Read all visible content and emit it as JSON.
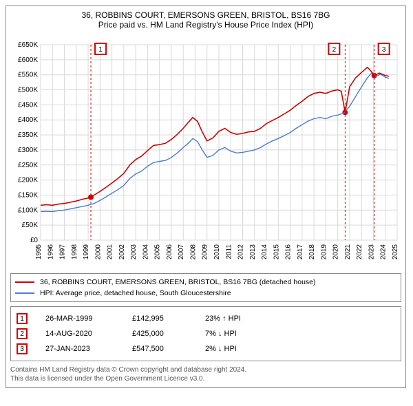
{
  "chart": {
    "type": "line",
    "title_line1": "36, ROBBINS COURT, EMERSONS GREEN, BRISTOL, BS16 7BG",
    "title_line2": "Price paid vs. HM Land Registry's House Price Index (HPI)",
    "title_fontsize": 12,
    "background_color": "#ffffff",
    "border_color": "#888888",
    "grid_color": "#d9d9d9",
    "axis_color": "#000000",
    "tick_fontsize": 10,
    "y": {
      "label_prefix": "£",
      "label_suffix": "K",
      "min": 0,
      "max": 650,
      "tick_step": 50,
      "ticks": [
        "£0",
        "£50K",
        "£100K",
        "£150K",
        "£200K",
        "£250K",
        "£300K",
        "£350K",
        "£400K",
        "£450K",
        "£500K",
        "£550K",
        "£600K",
        "£650K"
      ]
    },
    "x": {
      "min": 1995,
      "max": 2025,
      "tick_step": 1,
      "ticks": [
        "1995",
        "1996",
        "1997",
        "1998",
        "1999",
        "2000",
        "2001",
        "2002",
        "2003",
        "2004",
        "2005",
        "2006",
        "2007",
        "2008",
        "2009",
        "2010",
        "2011",
        "2012",
        "2013",
        "2014",
        "2015",
        "2016",
        "2017",
        "2018",
        "2019",
        "2020",
        "2021",
        "2022",
        "2023",
        "2024",
        "2025"
      ]
    },
    "series": [
      {
        "name": "36, ROBBINS COURT, EMERSONS GREEN, BRISTOL, BS16 7BG (detached house)",
        "color": "#d40000",
        "line_width": 1.6,
        "points": [
          [
            1995.0,
            116
          ],
          [
            1995.5,
            118
          ],
          [
            1996.0,
            116
          ],
          [
            1996.5,
            120
          ],
          [
            1997.0,
            122
          ],
          [
            1997.5,
            126
          ],
          [
            1998.0,
            130
          ],
          [
            1998.5,
            136
          ],
          [
            1999.0,
            140
          ],
          [
            1999.23,
            142.995
          ],
          [
            1999.5,
            150
          ],
          [
            2000.0,
            162
          ],
          [
            2000.5,
            176
          ],
          [
            2001.0,
            190
          ],
          [
            2001.5,
            205
          ],
          [
            2002.0,
            222
          ],
          [
            2002.5,
            250
          ],
          [
            2003.0,
            268
          ],
          [
            2003.5,
            280
          ],
          [
            2004.0,
            298
          ],
          [
            2004.5,
            315
          ],
          [
            2005.0,
            318
          ],
          [
            2005.5,
            322
          ],
          [
            2006.0,
            335
          ],
          [
            2006.5,
            352
          ],
          [
            2007.0,
            372
          ],
          [
            2007.5,
            395
          ],
          [
            2007.8,
            408
          ],
          [
            2008.2,
            395
          ],
          [
            2008.6,
            360
          ],
          [
            2009.0,
            330
          ],
          [
            2009.5,
            340
          ],
          [
            2010.0,
            362
          ],
          [
            2010.5,
            372
          ],
          [
            2011.0,
            358
          ],
          [
            2011.5,
            352
          ],
          [
            2012.0,
            355
          ],
          [
            2012.5,
            360
          ],
          [
            2013.0,
            362
          ],
          [
            2013.5,
            372
          ],
          [
            2014.0,
            388
          ],
          [
            2014.5,
            398
          ],
          [
            2015.0,
            408
          ],
          [
            2015.5,
            420
          ],
          [
            2016.0,
            432
          ],
          [
            2016.5,
            448
          ],
          [
            2017.0,
            462
          ],
          [
            2017.5,
            478
          ],
          [
            2018.0,
            488
          ],
          [
            2018.5,
            492
          ],
          [
            2019.0,
            488
          ],
          [
            2019.5,
            496
          ],
          [
            2020.0,
            500
          ],
          [
            2020.3,
            495
          ],
          [
            2020.62,
            425
          ],
          [
            2021.0,
            510
          ],
          [
            2021.5,
            540
          ],
          [
            2022.0,
            558
          ],
          [
            2022.5,
            575
          ],
          [
            2022.8,
            562
          ],
          [
            2023.07,
            547.5
          ],
          [
            2023.5,
            556
          ],
          [
            2024.0,
            548
          ],
          [
            2024.3,
            545
          ]
        ]
      },
      {
        "name": "HPI: Average price, detached house, South Gloucestershire",
        "color": "#4a7bd6",
        "line_width": 1.4,
        "points": [
          [
            1995.0,
            95
          ],
          [
            1995.5,
            96
          ],
          [
            1996.0,
            95
          ],
          [
            1996.5,
            98
          ],
          [
            1997.0,
            100
          ],
          [
            1997.5,
            104
          ],
          [
            1998.0,
            108
          ],
          [
            1998.5,
            112
          ],
          [
            1999.0,
            116
          ],
          [
            1999.5,
            122
          ],
          [
            2000.0,
            132
          ],
          [
            2000.5,
            144
          ],
          [
            2001.0,
            156
          ],
          [
            2001.5,
            168
          ],
          [
            2002.0,
            182
          ],
          [
            2002.5,
            205
          ],
          [
            2003.0,
            220
          ],
          [
            2003.5,
            230
          ],
          [
            2004.0,
            246
          ],
          [
            2004.5,
            258
          ],
          [
            2005.0,
            262
          ],
          [
            2005.5,
            265
          ],
          [
            2006.0,
            275
          ],
          [
            2006.5,
            290
          ],
          [
            2007.0,
            308
          ],
          [
            2007.5,
            325
          ],
          [
            2007.8,
            338
          ],
          [
            2008.2,
            328
          ],
          [
            2008.6,
            300
          ],
          [
            2009.0,
            275
          ],
          [
            2009.5,
            282
          ],
          [
            2010.0,
            300
          ],
          [
            2010.5,
            308
          ],
          [
            2011.0,
            296
          ],
          [
            2011.5,
            290
          ],
          [
            2012.0,
            292
          ],
          [
            2012.5,
            296
          ],
          [
            2013.0,
            300
          ],
          [
            2013.5,
            308
          ],
          [
            2014.0,
            320
          ],
          [
            2014.5,
            330
          ],
          [
            2015.0,
            338
          ],
          [
            2015.5,
            348
          ],
          [
            2016.0,
            358
          ],
          [
            2016.5,
            372
          ],
          [
            2017.0,
            384
          ],
          [
            2017.5,
            396
          ],
          [
            2018.0,
            404
          ],
          [
            2018.5,
            408
          ],
          [
            2019.0,
            404
          ],
          [
            2019.5,
            412
          ],
          [
            2020.0,
            416
          ],
          [
            2020.5,
            422
          ],
          [
            2021.0,
            445
          ],
          [
            2021.5,
            478
          ],
          [
            2022.0,
            510
          ],
          [
            2022.5,
            540
          ],
          [
            2022.9,
            558
          ],
          [
            2023.2,
            545
          ],
          [
            2023.6,
            552
          ],
          [
            2024.0,
            542
          ],
          [
            2024.3,
            538
          ]
        ]
      }
    ],
    "event_markers": [
      {
        "n": "1",
        "x": 1999.23,
        "y": 142.995,
        "date": "26-MAR-1999",
        "price": "£142,995",
        "hpi": "23% ↑ HPI",
        "line_color": "#d40000",
        "box_border": "#d40000"
      },
      {
        "n": "2",
        "x": 2020.62,
        "y": 425,
        "date": "14-AUG-2020",
        "price": "£425,000",
        "hpi": "7% ↓ HPI",
        "line_color": "#d40000",
        "box_border": "#d40000"
      },
      {
        "n": "3",
        "x": 2023.07,
        "y": 547.5,
        "date": "27-JAN-2023",
        "price": "£547,500",
        "hpi": "2% ↓ HPI",
        "line_color": "#d40000",
        "box_border": "#d40000"
      }
    ],
    "event_point_color": "#d40000",
    "event_point_radius": 4,
    "event_dash": "3,3"
  },
  "legend": {
    "items": [
      {
        "color": "#d40000",
        "label": "36, ROBBINS COURT, EMERSONS GREEN, BRISTOL, BS16 7BG (detached house)"
      },
      {
        "color": "#4a7bd6",
        "label": "HPI: Average price, detached house, South Gloucestershire"
      }
    ]
  },
  "footnote": {
    "line1": "Contains HM Land Registry data © Crown copyright and database right 2024.",
    "line2": "This data is licensed under the Open Government Licence v3.0."
  }
}
